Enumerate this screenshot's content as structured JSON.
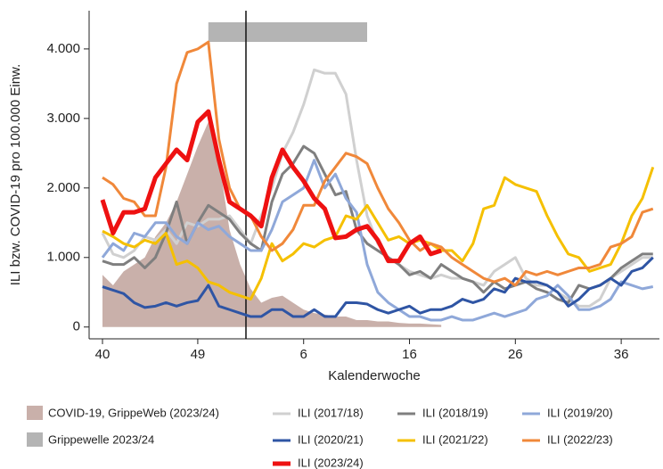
{
  "chart_data": {
    "type": "line",
    "x_label": "Kalenderwoche",
    "y_label": "ILI bzw. COVID-19 pro 100.000 Einw.",
    "categories": [
      "40",
      null,
      null,
      null,
      null,
      null,
      null,
      null,
      null,
      "49",
      null,
      null,
      null,
      null,
      null,
      null,
      null,
      null,
      null,
      "6",
      null,
      null,
      null,
      null,
      null,
      null,
      null,
      null,
      null,
      "16",
      null,
      null,
      null,
      null,
      null,
      null,
      null,
      null,
      null,
      "26",
      null,
      null,
      null,
      null,
      null,
      null,
      null,
      null,
      null,
      "36",
      null,
      null,
      null
    ],
    "ylim": [
      -170,
      4550
    ],
    "yticks": [
      0,
      {
        "value": 1000,
        "label": "1.000"
      },
      {
        "value": 2000,
        "label": "2.000"
      },
      {
        "value": 3000,
        "label": "3.000"
      },
      {
        "value": 4000,
        "label": "4.000"
      }
    ],
    "area": {
      "name": "COVID-19, GrippeWeb (2023/24)",
      "color": "#c9b0aa",
      "values": [
        750,
        600,
        800,
        900,
        1000,
        1300,
        1500,
        1800,
        2200,
        2600,
        2950,
        2400,
        1400,
        900,
        550,
        350,
        420,
        450,
        350,
        250,
        200,
        180,
        150,
        150,
        100,
        100,
        80,
        80,
        60,
        50,
        50,
        40,
        30,
        null,
        null,
        null,
        null,
        null,
        null,
        null,
        null,
        null,
        null,
        null,
        null,
        null,
        null,
        null,
        null,
        null,
        null,
        null,
        null
      ]
    },
    "band": {
      "name": "Grippewelle 2023/24",
      "color": "#b4b4b4",
      "start": 10,
      "end": 25
    },
    "series": [
      {
        "name": "ILI (2017/18)",
        "color": "#d0d0d0",
        "width": 3,
        "values": [
          1350,
          1050,
          1000,
          1100,
          1300,
          1250,
          1400,
          1200,
          1500,
          1450,
          1550,
          1550,
          1600,
          1400,
          1200,
          1600,
          2000,
          2500,
          2800,
          3200,
          3700,
          3650,
          3650,
          3350,
          2400,
          1600,
          1200,
          1000,
          900,
          800,
          750,
          700,
          750,
          700,
          700,
          650,
          600,
          800,
          900,
          1000,
          700,
          600,
          600,
          500,
          400,
          300,
          300,
          400,
          700,
          800,
          900,
          1000,
          1000
        ]
      },
      {
        "name": "ILI (2018/19)",
        "color": "#7f7f7f",
        "width": 3,
        "values": [
          950,
          900,
          900,
          1000,
          850,
          1000,
          1350,
          1800,
          1200,
          1500,
          1750,
          1650,
          1550,
          1350,
          1200,
          1100,
          1800,
          2200,
          2350,
          2600,
          2500,
          2200,
          1900,
          1950,
          1400,
          1200,
          1100,
          1000,
          900,
          750,
          800,
          700,
          900,
          800,
          700,
          650,
          500,
          650,
          550,
          600,
          650,
          550,
          500,
          400,
          350,
          600,
          550,
          600,
          700,
          850,
          950,
          1050,
          1050
        ]
      },
      {
        "name": "ILI (2019/20)",
        "color": "#8fa8d9",
        "width": 3,
        "values": [
          1000,
          1200,
          1100,
          1350,
          1300,
          1500,
          1500,
          1300,
          1200,
          1500,
          1400,
          1450,
          1300,
          1200,
          1100,
          1100,
          1400,
          1800,
          1900,
          2000,
          2400,
          2000,
          2200,
          1850,
          1650,
          900,
          500,
          350,
          250,
          150,
          150,
          100,
          100,
          150,
          100,
          100,
          150,
          200,
          150,
          200,
          250,
          400,
          450,
          600,
          450,
          250,
          250,
          300,
          400,
          650,
          600,
          550,
          580
        ]
      },
      {
        "name": "ILI (2020/21)",
        "color": "#2f55a4",
        "width": 3,
        "values": [
          580,
          530,
          480,
          350,
          280,
          300,
          350,
          300,
          350,
          380,
          600,
          300,
          250,
          200,
          150,
          150,
          250,
          250,
          150,
          150,
          250,
          150,
          150,
          350,
          350,
          330,
          250,
          200,
          250,
          300,
          200,
          250,
          250,
          300,
          400,
          350,
          400,
          550,
          500,
          700,
          650,
          650,
          600,
          500,
          300,
          400,
          550,
          600,
          700,
          600,
          800,
          850,
          1000
        ]
      },
      {
        "name": "ILI (2021/22)",
        "color": "#f5c000",
        "width": 3,
        "values": [
          1380,
          1300,
          1200,
          1150,
          1250,
          1200,
          1350,
          900,
          950,
          850,
          650,
          600,
          500,
          450,
          400,
          700,
          1200,
          950,
          1050,
          1200,
          1150,
          1250,
          1300,
          1600,
          1550,
          1750,
          1500,
          1250,
          1300,
          1200,
          1250,
          1200,
          1100,
          1100,
          950,
          1200,
          1700,
          1750,
          2150,
          2050,
          2000,
          1950,
          1600,
          1300,
          1050,
          1000,
          800,
          850,
          900,
          1200,
          1600,
          1850,
          2300
        ]
      },
      {
        "name": "ILI (2022/23)",
        "color": "#f0883a",
        "width": 3,
        "values": [
          2150,
          2050,
          1850,
          1800,
          1600,
          1600,
          2300,
          3500,
          3950,
          4000,
          4100,
          2700,
          2000,
          1700,
          1600,
          1300,
          1100,
          1200,
          1400,
          1750,
          1750,
          2100,
          2300,
          2500,
          2450,
          2350,
          2000,
          1700,
          1500,
          1250,
          1100,
          1200,
          1150,
          1000,
          900,
          800,
          700,
          650,
          700,
          600,
          800,
          750,
          800,
          750,
          800,
          850,
          850,
          900,
          1150,
          1200,
          1300,
          1650,
          1700
        ]
      },
      {
        "name": "ILI (2023/24)",
        "color": "#ee1111",
        "width": 5,
        "values": [
          1830,
          1350,
          1650,
          1650,
          1700,
          2150,
          2350,
          2550,
          2400,
          2950,
          3100,
          2400,
          1800,
          1700,
          1600,
          1450,
          2150,
          2550,
          2300,
          2100,
          1850,
          1700,
          1280,
          1300,
          1400,
          1450,
          1250,
          950,
          950,
          1200,
          1300,
          1050,
          1100,
          null,
          null,
          null,
          null,
          null,
          null,
          null,
          null,
          null,
          null,
          null,
          null,
          null,
          null,
          null,
          null,
          null,
          null,
          null,
          null
        ]
      }
    ]
  }
}
